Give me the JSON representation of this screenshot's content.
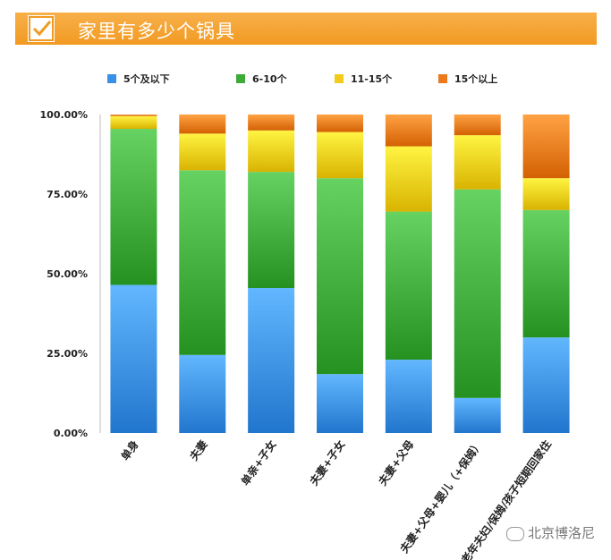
{
  "title": "家里有多少个锅具",
  "watermark": "北京博洛尼",
  "colors": {
    "title_bg": "#f3a22d",
    "series": [
      "#3a8fe6",
      "#3eaa3a",
      "#f2cc1a",
      "#ec7a1c"
    ]
  },
  "chart_data": {
    "type": "bar",
    "stacked": true,
    "title": "家里有多少个锅具",
    "categories": [
      "单身",
      "夫妻",
      "单亲+子女",
      "夫妻+子女",
      "夫妻+父母",
      "夫妻+父母+婴儿（+保姆）",
      "老年夫妇/保姆/孩子短期回家住"
    ],
    "series": [
      {
        "name": "5个及以下",
        "values": [
          46.5,
          24.5,
          45.5,
          18.5,
          23.0,
          11.0,
          30.0
        ]
      },
      {
        "name": "6-10个",
        "values": [
          49.0,
          58.0,
          36.5,
          61.5,
          46.5,
          65.5,
          40.0
        ]
      },
      {
        "name": "11-15个",
        "values": [
          4.0,
          11.5,
          13.0,
          14.5,
          20.5,
          17.0,
          10.0
        ]
      },
      {
        "name": "15个以上",
        "values": [
          0.5,
          6.0,
          5.0,
          5.5,
          10.0,
          6.5,
          20.0
        ]
      }
    ],
    "ylim": [
      0,
      100
    ],
    "yticks": [
      "0.00%",
      "25.00%",
      "50.00%",
      "75.00%",
      "100.00%"
    ],
    "ytick_values": [
      0,
      25,
      50,
      75,
      100
    ],
    "legend_position": "top",
    "grid": false
  }
}
